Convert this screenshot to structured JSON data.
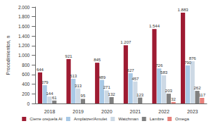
{
  "chart_data": {
    "type": "bar",
    "y_label": "Procedimientos, n",
    "categories": [
      "2018",
      "2019",
      "2020",
      "2021",
      "2022",
      "2023"
    ],
    "series": [
      {
        "name": "Cierre orejuela AI",
        "color": "#9e1b32",
        "values": [
          644,
          921,
          845,
          1207,
          1544,
          1883
        ],
        "value_labels": [
          "644",
          "921",
          "845",
          "1.207",
          "1.544",
          "1.883"
        ]
      },
      {
        "name": "Amplatzer/Amulet",
        "color": "#a9c9e6",
        "values": [
          379,
          513,
          489,
          627,
          726,
          790
        ],
        "value_labels": [
          "379",
          "513",
          "489",
          "627",
          "726",
          "790"
        ]
      },
      {
        "name": "Watchman",
        "color": "#cdd9e5",
        "values": [
          144,
          313,
          271,
          457,
          583,
          876
        ],
        "value_labels": [
          "144",
          "313",
          "271",
          "457",
          "583",
          "876"
        ]
      },
      {
        "name": "Lambre",
        "color": "#808080",
        "values": [
          61,
          95,
          132,
          123,
          203,
          262
        ],
        "value_labels": [
          "61",
          "95",
          "132",
          "123",
          "203",
          "262"
        ]
      },
      {
        "name": "Omega",
        "color": "#e8817b",
        "values": [
          null,
          null,
          null,
          null,
          32,
          117
        ],
        "value_labels": [
          null,
          null,
          null,
          null,
          "32",
          "117"
        ]
      }
    ],
    "ylim": [
      0,
      2000
    ],
    "yticks": [
      0,
      200,
      400,
      600,
      800,
      {
        "value": 1000,
        "label": "1.000"
      },
      {
        "value": 1200,
        "label": "1.200"
      },
      {
        "value": 1400,
        "label": "1.400"
      },
      {
        "value": 1600,
        "label": "1.600"
      },
      {
        "value": 1800,
        "label": "1.800"
      },
      {
        "value": 2000,
        "label": "2.000"
      }
    ],
    "grid": false,
    "legend": "bottom",
    "data_labels": true
  }
}
